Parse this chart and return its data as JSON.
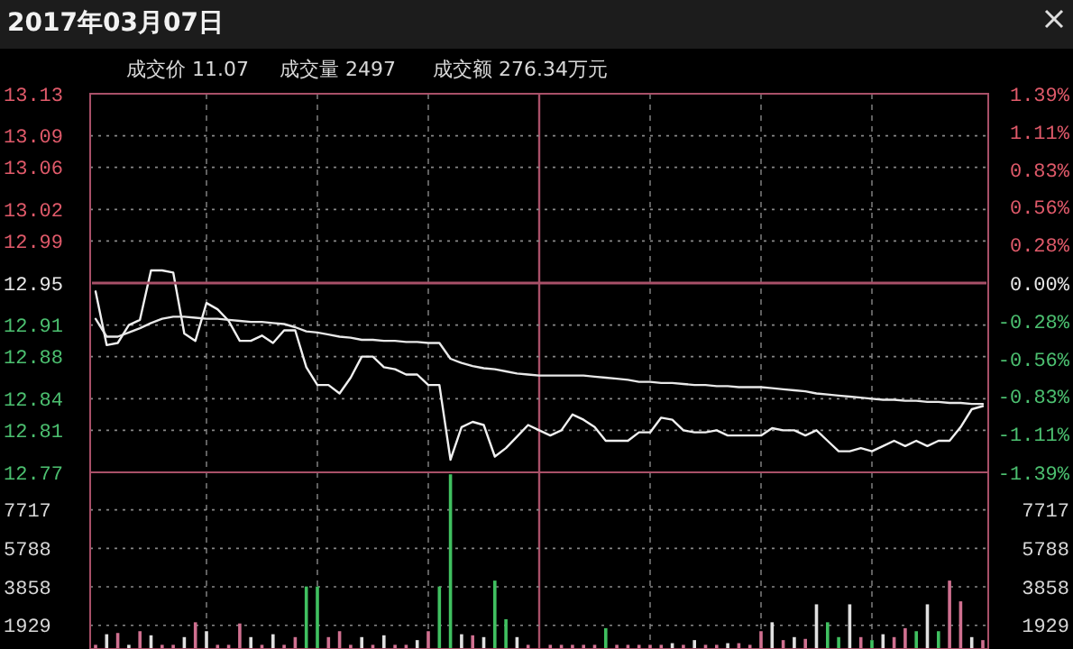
{
  "chart_data": [
    {
      "type": "line",
      "title": "2017年03月07日",
      "annotations": [
        "成交价 11.07",
        "成交量 2497",
        "成交额 276.34万元"
      ],
      "categories": [
        null,
        null,
        null,
        null,
        null,
        null,
        null,
        null,
        null,
        null,
        null,
        null,
        null,
        null,
        null,
        null,
        null,
        null,
        null,
        null,
        null,
        null,
        null,
        null,
        null,
        null,
        null,
        null,
        null,
        null,
        null,
        null,
        null,
        null,
        null,
        null,
        null,
        null,
        null,
        null,
        null,
        null,
        null,
        null,
        null,
        null,
        null,
        null,
        null,
        null,
        null,
        null,
        null,
        null,
        null,
        null,
        null,
        null,
        null,
        null,
        null,
        null,
        null,
        null,
        null,
        null,
        null,
        null,
        null,
        null,
        null,
        null,
        null,
        null,
        null,
        null,
        null,
        null,
        null,
        null,
        null
      ],
      "ylim": [
        12.77,
        13.13
      ],
      "yticks": [
        12.77,
        12.81,
        12.84,
        12.88,
        12.91,
        12.95,
        12.99,
        13.02,
        13.06,
        13.09,
        13.13
      ],
      "y2lim": [
        -1.39,
        1.39
      ],
      "y2ticks": [
        {
          "value": -1.39,
          "label": "-1.39%"
        },
        {
          "value": -1.11,
          "label": "-1.11%"
        },
        {
          "value": -0.83,
          "label": "-0.83%"
        },
        {
          "value": -0.56,
          "label": "-0.56%"
        },
        {
          "value": -0.28,
          "label": "-0.28%"
        },
        {
          "value": 0,
          "label": "0.00%"
        },
        {
          "value": 0.28,
          "label": "0.28%"
        },
        {
          "value": 0.56,
          "label": "0.56%"
        },
        {
          "value": 0.83,
          "label": "0.83%"
        },
        {
          "value": 1.11,
          "label": "1.11%"
        },
        {
          "value": 1.39,
          "label": "1.39%"
        }
      ],
      "grid": true,
      "line_style": "solid",
      "ref_lines": [
        {
          "axis": "y",
          "value": 12.95,
          "label": null,
          "color": "#a85068"
        }
      ],
      "series": [
        {
          "color": "#f0f0f0",
          "values": [
            12.942,
            12.891,
            12.893,
            12.91,
            12.915,
            12.962,
            12.962,
            12.96,
            12.902,
            12.895,
            12.931,
            12.925,
            12.914,
            12.895,
            12.895,
            12.9,
            12.893,
            12.905,
            12.905,
            12.87,
            12.853,
            12.853,
            12.845,
            12.86,
            12.88,
            12.88,
            12.87,
            12.868,
            12.863,
            12.863,
            12.853,
            12.853,
            12.782,
            12.813,
            12.818,
            12.815,
            12.785,
            12.793,
            12.804,
            12.815,
            12.81,
            12.805,
            12.81,
            12.825,
            12.82,
            12.813,
            12.8,
            12.8,
            12.8,
            12.808,
            12.808,
            12.822,
            12.82,
            12.81,
            12.808,
            12.808,
            12.81,
            12.805,
            12.805,
            12.805,
            12.805,
            12.812,
            12.81,
            12.81,
            12.805,
            12.81,
            12.8,
            12.79,
            12.79,
            12.793,
            12.79,
            12.795,
            12.8,
            12.795,
            12.8,
            12.795,
            12.8,
            12.8,
            12.813,
            12.83,
            12.833
          ]
        },
        {
          "color": "#e8e8e8",
          "values": [
            12.916,
            12.899,
            12.899,
            12.903,
            12.907,
            12.912,
            12.916,
            12.918,
            12.918,
            12.917,
            12.916,
            12.916,
            12.915,
            12.914,
            12.913,
            12.913,
            12.912,
            12.911,
            12.908,
            12.904,
            12.903,
            12.901,
            12.899,
            12.898,
            12.896,
            12.896,
            12.895,
            12.895,
            12.894,
            12.894,
            12.893,
            12.893,
            12.878,
            12.874,
            12.871,
            12.869,
            12.868,
            12.866,
            12.864,
            12.863,
            12.862,
            12.862,
            12.862,
            12.862,
            12.862,
            12.861,
            12.86,
            12.859,
            12.858,
            12.856,
            12.856,
            12.855,
            12.855,
            12.854,
            12.853,
            12.853,
            12.852,
            12.852,
            12.851,
            12.851,
            12.851,
            12.85,
            12.849,
            12.848,
            12.847,
            12.845,
            12.844,
            12.843,
            12.842,
            12.841,
            12.84,
            12.839,
            12.839,
            12.838,
            12.838,
            12.837,
            12.837,
            12.836,
            12.836,
            12.835,
            12.835
          ]
        }
      ]
    },
    {
      "type": "bar",
      "categories": [
        null,
        null,
        null,
        null,
        null,
        null,
        null,
        null,
        null,
        null,
        null,
        null,
        null,
        null,
        null,
        null,
        null,
        null,
        null,
        null,
        null,
        null,
        null,
        null,
        null,
        null,
        null,
        null,
        null,
        null,
        null,
        null,
        null,
        null,
        null,
        null,
        null,
        null,
        null,
        null,
        null,
        null,
        null,
        null,
        null,
        null,
        null,
        null,
        null,
        null,
        null,
        null,
        null,
        null,
        null,
        null,
        null,
        null,
        null,
        null,
        null,
        null,
        null,
        null,
        null,
        null,
        null,
        null,
        null,
        null,
        null,
        null,
        null,
        null,
        null,
        null,
        null,
        null,
        null,
        null,
        null
      ],
      "ylim": [
        740,
        9600
      ],
      "yticks": [
        1929,
        3858,
        5788,
        7717
      ],
      "y2lim": [
        740,
        9600
      ],
      "y2ticks": [
        1929,
        3858,
        5788,
        7717
      ],
      "grid": true,
      "values": [
        950,
        1480,
        1543,
        950,
        1633,
        1427,
        950,
        950,
        1337,
        2080,
        1633,
        950,
        950,
        2020,
        1337,
        950,
        1480,
        950,
        1337,
        3875,
        3875,
        1337,
        1633,
        950,
        1337,
        950,
        1427,
        950,
        950,
        1185,
        1633,
        3875,
        9500,
        1480,
        1427,
        1337,
        4170,
        2235,
        1337,
        950,
        null,
        950,
        950,
        950,
        950,
        950,
        1785,
        950,
        950,
        950,
        950,
        950,
        1032,
        950,
        1185,
        950,
        950,
        1032,
        1032,
        950,
        1633,
        2080,
        1185,
        1337,
        1247,
        2980,
        2080,
        1337,
        2980,
        1337,
        1185,
        1480,
        1337,
        1785,
        1633,
        2980,
        1633,
        4170,
        3130,
        1337,
        1185
      ],
      "colors": [
        "#d07090",
        "#e0e0e0",
        "#d07090",
        "#e0e0e0",
        "#d07090",
        "#e0e0e0",
        "#d07090",
        "#d07090",
        "#e0e0e0",
        "#d07090",
        "#e0e0e0",
        "#d07090",
        "#d07090",
        "#d07090",
        "#e0e0e0",
        "#d07090",
        "#e0e0e0",
        "#d07090",
        "#d07090",
        "#40c060",
        "#40c060",
        "#d07090",
        "#d07090",
        "#d07090",
        "#e0e0e0",
        "#d07090",
        "#e0e0e0",
        "#d07090",
        "#d07090",
        "#e0e0e0",
        "#d07090",
        "#40c060",
        "#40c060",
        "#e0e0e0",
        "#d07090",
        "#e0e0e0",
        "#40c060",
        "#40c060",
        "#e0e0e0",
        "#d07090",
        null,
        "#d07090",
        "#d07090",
        "#d07090",
        "#d07090",
        "#d07090",
        "#40c060",
        "#d07090",
        "#d07090",
        "#d07090",
        "#d07090",
        "#d07090",
        "#e0e0e0",
        "#d07090",
        "#e0e0e0",
        "#d07090",
        "#d07090",
        "#e0e0e0",
        "#d07090",
        "#d07090",
        "#d07090",
        "#e0e0e0",
        "#d07090",
        "#e0e0e0",
        "#d07090",
        "#e0e0e0",
        "#40c060",
        "#40c060",
        "#e0e0e0",
        "#d07090",
        "#40c060",
        "#e0e0e0",
        "#d07090",
        "#d07090",
        "#40c060",
        "#e0e0e0",
        "#40c060",
        "#d07090",
        "#d07090",
        "#e0e0e0",
        "#d07090"
      ]
    }
  ]
}
